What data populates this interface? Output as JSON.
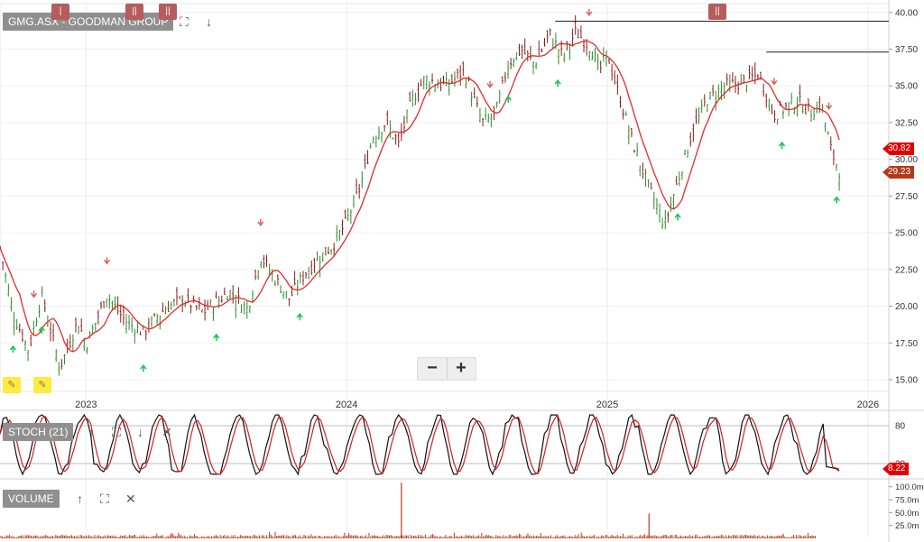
{
  "title": "GMG.ASX - GOODMAN GROUP",
  "stoch_label": "STOCH (21)",
  "volume_label": "VOLUME",
  "zoom": {
    "minus": "−",
    "plus": "+"
  },
  "icons": {
    "expand": "⛶",
    "down": "↓",
    "up": "↑",
    "close": "✕",
    "pencil": "✎"
  },
  "colors": {
    "candle_up": "#2e8b2e",
    "candle_down": "#8b1a1a",
    "ma": "#e32b2b",
    "up_arrow": "#22c55e",
    "down_arrow": "#e05a5a",
    "badge_red": "#e50000",
    "badge_dark": "#b23a1a",
    "volume": "#b83b1a",
    "stoch_k": "#111111",
    "stoch_d": "#d32020"
  },
  "badges": {
    "ma_value": "30.82",
    "last_price": "29.23",
    "stoch_value": "8.22"
  },
  "chart_data": [
    {
      "type": "candlestick",
      "title": "GMG.ASX - GOODMAN GROUP",
      "x_ticks": [
        "2023",
        "2024",
        "2025",
        "2026"
      ],
      "y_ticks": [
        "15.00",
        "17.50",
        "20.00",
        "22.50",
        "25.00",
        "27.50",
        "30.00",
        "32.50",
        "35.00",
        "37.50",
        "40.00"
      ],
      "ylim": [
        14.2,
        40.6
      ],
      "xlim": [
        2022.67,
        2026.08
      ],
      "close_path": {
        "x": [
          2022.67,
          2022.72,
          2022.78,
          2022.83,
          2022.9,
          2022.97,
          2023.0,
          2023.08,
          2023.15,
          2023.22,
          2023.3,
          2023.37,
          2023.45,
          2023.55,
          2023.62,
          2023.67,
          2023.72,
          2023.78,
          2023.83,
          2023.88,
          2023.95,
          2024.0,
          2024.05,
          2024.1,
          2024.15,
          2024.2,
          2024.25,
          2024.3,
          2024.38,
          2024.45,
          2024.52,
          2024.57,
          2024.62,
          2024.67,
          2024.72,
          2024.78,
          2024.83,
          2024.88,
          2024.94,
          2024.97,
          2025.0,
          2025.05,
          2025.1,
          2025.15,
          2025.22,
          2025.27,
          2025.32,
          2025.38,
          2025.45,
          2025.52,
          2025.58,
          2025.64,
          2025.68,
          2025.73,
          2025.78,
          2025.82,
          2025.86,
          2025.89
        ],
        "y": [
          24.0,
          19.5,
          17.0,
          20.8,
          15.8,
          19.0,
          17.3,
          20.8,
          19.0,
          18.2,
          19.8,
          20.5,
          19.6,
          21.0,
          19.8,
          23.4,
          22.0,
          20.5,
          22.0,
          23.0,
          24.2,
          25.8,
          28.0,
          31.5,
          32.5,
          31.0,
          34.0,
          35.5,
          35.0,
          36.0,
          32.5,
          33.0,
          36.5,
          37.5,
          36.5,
          38.5,
          37.0,
          38.7,
          37.5,
          36.0,
          37.2,
          34.0,
          31.0,
          28.5,
          25.5,
          28.5,
          31.5,
          34.0,
          35.0,
          35.2,
          35.8,
          33.0,
          33.5,
          34.0,
          33.2,
          33.8,
          30.5,
          29.23
        ]
      },
      "swing_highs": [
        2022.8,
        2023.08,
        2023.67,
        2024.55,
        2024.93,
        2025.64,
        2025.85
      ],
      "swing_lows": [
        2022.72,
        2022.83,
        2023.22,
        2023.5,
        2023.82,
        2024.62,
        2024.81,
        2025.27,
        2025.67,
        2025.88
      ],
      "resistance_lines": [
        {
          "from": 2024.8,
          "to": 2026.08,
          "y": 39.4
        },
        {
          "from": 2025.61,
          "to": 2026.08,
          "y": 37.3
        }
      ],
      "moving_average_last": 30.82,
      "last_price": 29.23
    },
    {
      "type": "line",
      "title": "STOCH (21)",
      "y_ticks": [
        "80",
        "20"
      ],
      "ylim": [
        0,
        100
      ],
      "last_value": 8.22
    },
    {
      "type": "bar",
      "title": "VOLUME",
      "y_ticks": [
        "100.0m",
        "75.0m",
        "50.0m",
        "25.0m"
      ],
      "ylim": [
        0,
        110
      ],
      "spikes": [
        {
          "x": 2024.21,
          "value": 108
        },
        {
          "x": 2025.16,
          "value": 48
        }
      ]
    }
  ]
}
